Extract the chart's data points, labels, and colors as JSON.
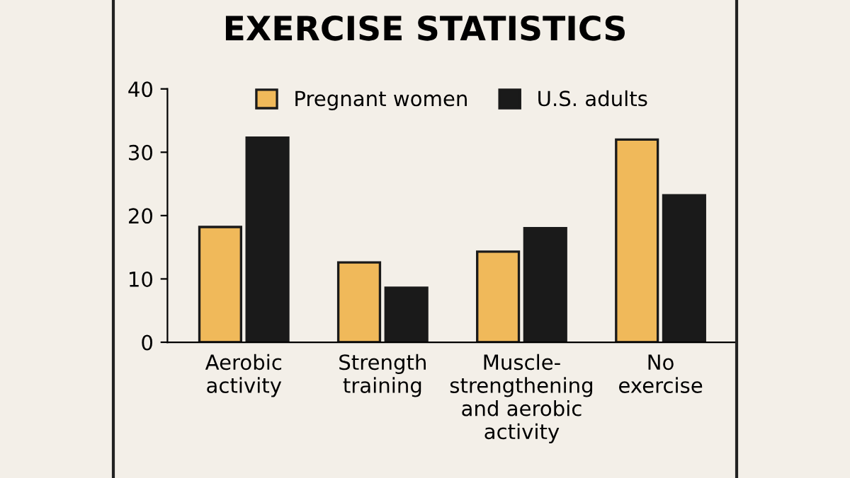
{
  "chart_data": {
    "type": "bar",
    "title": "EXERCISE STATISTICS",
    "categories": [
      "Aerobic\nactivity",
      "Strength\ntraining",
      "Muscle-\nstrengthening\nand aerobic\nactivity",
      "No\nexercise"
    ],
    "series": [
      {
        "name": "Pregnant women",
        "color": "#f0b95a",
        "values": [
          18.2,
          12.6,
          14.3,
          32.0
        ]
      },
      {
        "name": "U.S. adults",
        "color": "#1a1a1a",
        "values": [
          32.3,
          8.6,
          18.0,
          23.2
        ]
      }
    ],
    "ylim": [
      0,
      40
    ],
    "yticks": [
      0,
      10,
      20,
      30,
      40
    ],
    "grid": false,
    "legend": "top"
  }
}
